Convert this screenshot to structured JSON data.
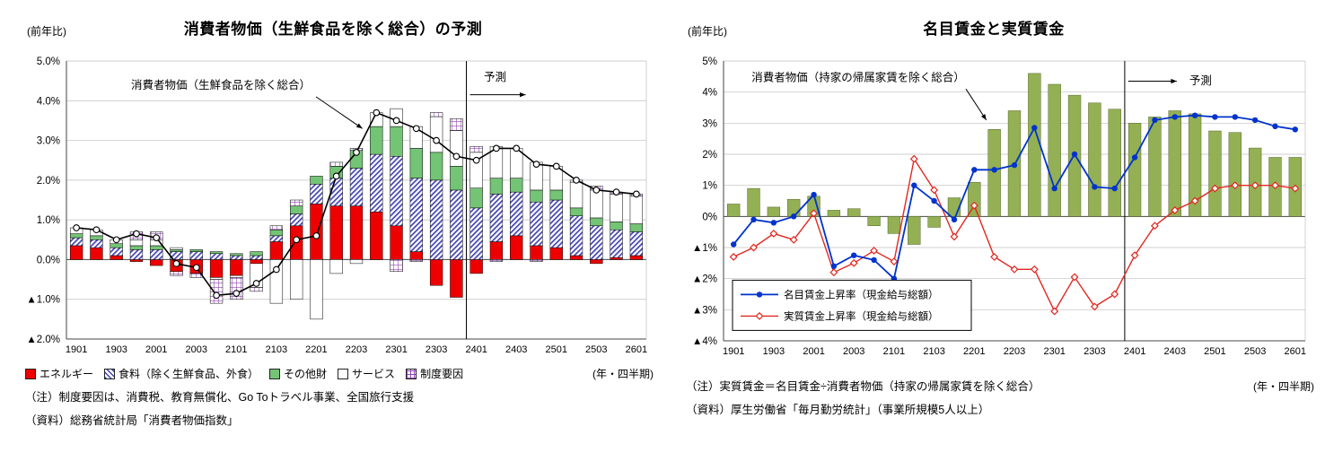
{
  "figure": {
    "background": "#ffffff"
  },
  "chart_data": [
    {
      "type": "bar",
      "variant": "stacked_bars_with_total_line",
      "title": "消費者物価（生鮮食品を除く総合）の予測",
      "unit_label": "(前年比)",
      "xaxis_label": "(年・四半期)",
      "annotation_label": "消費者物価（生鮮食品を除く総合）",
      "forecast_label": "予測",
      "forecast_boundary_category": "2401",
      "forecast_index": 20,
      "ylim": [
        -2,
        5
      ],
      "ytick_decimals": 1,
      "grid": "horizontal",
      "xtick_every": 2,
      "categories": [
        "1901",
        "1902",
        "1903",
        "1904",
        "2001",
        "2002",
        "2003",
        "2004",
        "2101",
        "2102",
        "2103",
        "2104",
        "2201",
        "2202",
        "2203",
        "2204",
        "2301",
        "2302",
        "2303",
        "2304",
        "2401",
        "2402",
        "2403",
        "2404",
        "2501",
        "2502",
        "2503",
        "2504",
        "2601"
      ],
      "series": [
        {
          "name": "エネルギー",
          "fill": "solid",
          "color": "#EE0000",
          "values": [
            0.35,
            0.3,
            0.1,
            -0.05,
            -0.15,
            -0.3,
            -0.35,
            -0.45,
            -0.4,
            -0.1,
            0.45,
            0.85,
            1.4,
            1.35,
            1.35,
            1.2,
            0.85,
            0.2,
            -0.65,
            -0.95,
            -0.35,
            0.45,
            0.6,
            0.35,
            0.3,
            0.1,
            -0.1,
            0.05,
            0.1
          ]
        },
        {
          "name": "食料（除く生鮮食品、外食）",
          "fill": "hatch-diagonal",
          "color": "#4444B4",
          "values": [
            0.2,
            0.2,
            0.2,
            0.25,
            0.25,
            0.2,
            0.2,
            0.15,
            0.1,
            0.1,
            0.15,
            0.3,
            0.5,
            0.7,
            0.95,
            1.45,
            1.75,
            1.85,
            2.0,
            1.75,
            1.3,
            1.2,
            1.1,
            1.1,
            1.2,
            1.0,
            0.85,
            0.7,
            0.6
          ]
        },
        {
          "name": "その他財",
          "fill": "solid",
          "color": "#74C476",
          "values": [
            0.1,
            0.1,
            0.1,
            0.1,
            0.1,
            0.05,
            0.05,
            0.05,
            0.05,
            0.1,
            0.15,
            0.2,
            0.2,
            0.3,
            0.45,
            0.7,
            0.75,
            0.75,
            0.7,
            0.6,
            0.5,
            0.4,
            0.35,
            0.3,
            0.25,
            0.2,
            0.2,
            0.2,
            0.2
          ]
        },
        {
          "name": "サービス",
          "fill": "solid",
          "color": "#FFFFFF",
          "values": [
            0.15,
            0.15,
            0.1,
            0.15,
            0.15,
            0.05,
            0.0,
            -0.05,
            -0.05,
            -0.6,
            -1.1,
            -1.0,
            -1.5,
            -0.35,
            -0.1,
            0.35,
            0.45,
            0.55,
            0.9,
            0.9,
            0.9,
            0.8,
            0.75,
            0.7,
            0.6,
            0.65,
            0.7,
            0.7,
            0.7
          ]
        },
        {
          "name": "制度要因",
          "fill": "hatch-grid",
          "color": "#9146B4",
          "values": [
            0.0,
            0.0,
            0.0,
            0.2,
            0.2,
            -0.1,
            -0.1,
            -0.6,
            -0.55,
            -0.1,
            0.1,
            0.15,
            0.0,
            0.1,
            0.05,
            0.0,
            -0.3,
            -0.05,
            0.1,
            0.3,
            0.15,
            -0.05,
            0.0,
            -0.05,
            0.0,
            0.05,
            0.1,
            0.05,
            0.05
          ]
        }
      ],
      "total_line": {
        "name": "消費者物価（生鮮食品を除く総合）",
        "color": "#000000",
        "marker": "open-circle",
        "values": [
          0.8,
          0.75,
          0.5,
          0.65,
          0.55,
          -0.1,
          -0.2,
          -0.9,
          -0.85,
          -0.6,
          -0.25,
          0.5,
          0.6,
          2.1,
          2.7,
          3.7,
          3.5,
          3.3,
          3.0,
          2.6,
          2.5,
          2.8,
          2.8,
          2.4,
          2.35,
          2.0,
          1.75,
          1.7,
          1.65
        ]
      },
      "notes": [
        "（注）制度要因は、消費税、教育無償化、Go Toトラベル事業、全国旅行支援",
        "（資料）総務省統計局「消費者物価指数」"
      ]
    },
    {
      "type": "bar",
      "variant": "bars_with_two_lines",
      "title": "名目賃金と実質賃金",
      "unit_label": "(前年比)",
      "xaxis_label": "(年・四半期)",
      "annotation_label": "消費者物価（持家の帰属家賃を除く総合）",
      "forecast_label": "予測",
      "forecast_boundary_category": "2401",
      "forecast_index": 20,
      "ylim": [
        -4,
        5
      ],
      "ytick_decimals": 0,
      "grid": "horizontal",
      "xtick_every": 2,
      "legend_position": "inside-bottom-left",
      "categories": [
        "1901",
        "1902",
        "1903",
        "1904",
        "2001",
        "2002",
        "2003",
        "2004",
        "2101",
        "2102",
        "2103",
        "2104",
        "2201",
        "2202",
        "2203",
        "2204",
        "2301",
        "2302",
        "2303",
        "2304",
        "2401",
        "2402",
        "2403",
        "2404",
        "2501",
        "2502",
        "2503",
        "2504",
        "2601"
      ],
      "bar_series": {
        "name": "消費者物価（持家の帰属家賃を除く総合）",
        "color": "#94B054",
        "values": [
          0.4,
          0.9,
          0.3,
          0.55,
          0.65,
          0.2,
          0.25,
          -0.3,
          -0.55,
          -0.9,
          -0.35,
          0.6,
          1.1,
          2.8,
          3.4,
          4.6,
          4.25,
          3.9,
          3.65,
          3.45,
          3.0,
          3.2,
          3.4,
          3.3,
          2.75,
          2.7,
          2.2,
          1.9,
          1.9
        ]
      },
      "line_series": [
        {
          "name": "名目賃金上昇率（現金給与総額）",
          "color": "#0033CC",
          "marker": "filled-circle",
          "values": [
            -0.9,
            -0.1,
            -0.2,
            0.0,
            0.7,
            -1.6,
            -1.25,
            -1.4,
            -2.0,
            1.0,
            0.5,
            -0.1,
            1.5,
            1.5,
            1.65,
            2.85,
            0.9,
            2.0,
            0.95,
            0.9,
            1.9,
            3.1,
            3.2,
            3.25,
            3.2,
            3.2,
            3.1,
            2.9,
            2.8
          ]
        },
        {
          "name": "実質賃金上昇率（現金給与総額）",
          "color": "#E02820",
          "marker": "open-diamond",
          "values": [
            -1.3,
            -1.0,
            -0.55,
            -0.75,
            0.1,
            -1.8,
            -1.5,
            -1.1,
            -1.45,
            1.85,
            0.85,
            -0.65,
            0.35,
            -1.3,
            -1.7,
            -1.7,
            -3.05,
            -1.95,
            -2.9,
            -2.5,
            -1.25,
            -0.3,
            0.2,
            0.5,
            0.9,
            1.0,
            1.0,
            1.0,
            0.9
          ]
        }
      ],
      "notes": [
        "（注）実質賃金＝名目賃金÷消費者物価（持家の帰属家賃を除く総合）",
        "（資料）厚生労働省「毎月勤労統計」（事業所規模5人以上）"
      ]
    }
  ]
}
